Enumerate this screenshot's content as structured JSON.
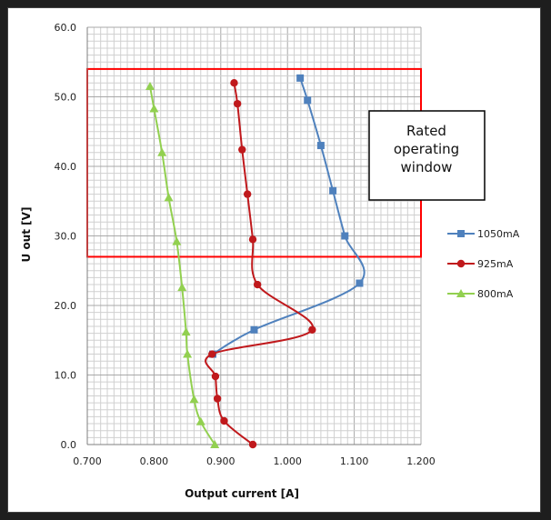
{
  "chart_data": {
    "type": "line",
    "title": "",
    "xlabel": "Output current [A]",
    "ylabel": "U out [V]",
    "xlim": [
      0.7,
      1.2
    ],
    "ylim": [
      0,
      60
    ],
    "x_ticks": [
      "0.700",
      "0.800",
      "0.900",
      "1.000",
      "1.100",
      "1.200"
    ],
    "y_ticks": [
      "0.0",
      "10.0",
      "20.0",
      "30.0",
      "40.0",
      "50.0",
      "60.0"
    ],
    "grid": true,
    "legend_position": "right",
    "series": [
      {
        "name": "1050mA",
        "color": "#4f81bd",
        "marker": "square",
        "points": [
          [
            0.888,
            13.0
          ],
          [
            0.95,
            16.5
          ],
          [
            1.108,
            23.2
          ],
          [
            1.086,
            30.0
          ],
          [
            1.068,
            36.5
          ],
          [
            1.05,
            43.0
          ],
          [
            1.03,
            49.5
          ],
          [
            1.019,
            52.7
          ]
        ]
      },
      {
        "name": "925mA",
        "color": "#c0191c",
        "marker": "circle",
        "points": [
          [
            0.948,
            0.0
          ],
          [
            0.905,
            3.4
          ],
          [
            0.895,
            6.6
          ],
          [
            0.892,
            9.8
          ],
          [
            0.887,
            13.0
          ],
          [
            1.037,
            16.5
          ],
          [
            0.955,
            23.0
          ],
          [
            0.948,
            29.5
          ],
          [
            0.94,
            36.0
          ],
          [
            0.932,
            42.4
          ],
          [
            0.925,
            49.0
          ],
          [
            0.92,
            52.0
          ]
        ]
      },
      {
        "name": "800mA",
        "color": "#92d050",
        "marker": "triangle",
        "points": [
          [
            0.891,
            0.0
          ],
          [
            0.87,
            3.3
          ],
          [
            0.86,
            6.5
          ],
          [
            0.85,
            13.0
          ],
          [
            0.848,
            16.2
          ],
          [
            0.842,
            22.6
          ],
          [
            0.834,
            29.2
          ],
          [
            0.822,
            35.5
          ],
          [
            0.812,
            42.0
          ],
          [
            0.8,
            48.3
          ],
          [
            0.794,
            51.5
          ]
        ]
      }
    ],
    "highlight_rect": {
      "x_range": [
        0.7,
        1.2
      ],
      "y_range": [
        27,
        54
      ],
      "color": "#ff0000"
    },
    "annotation": {
      "lines": [
        "Rated",
        "operating",
        "window"
      ]
    }
  }
}
